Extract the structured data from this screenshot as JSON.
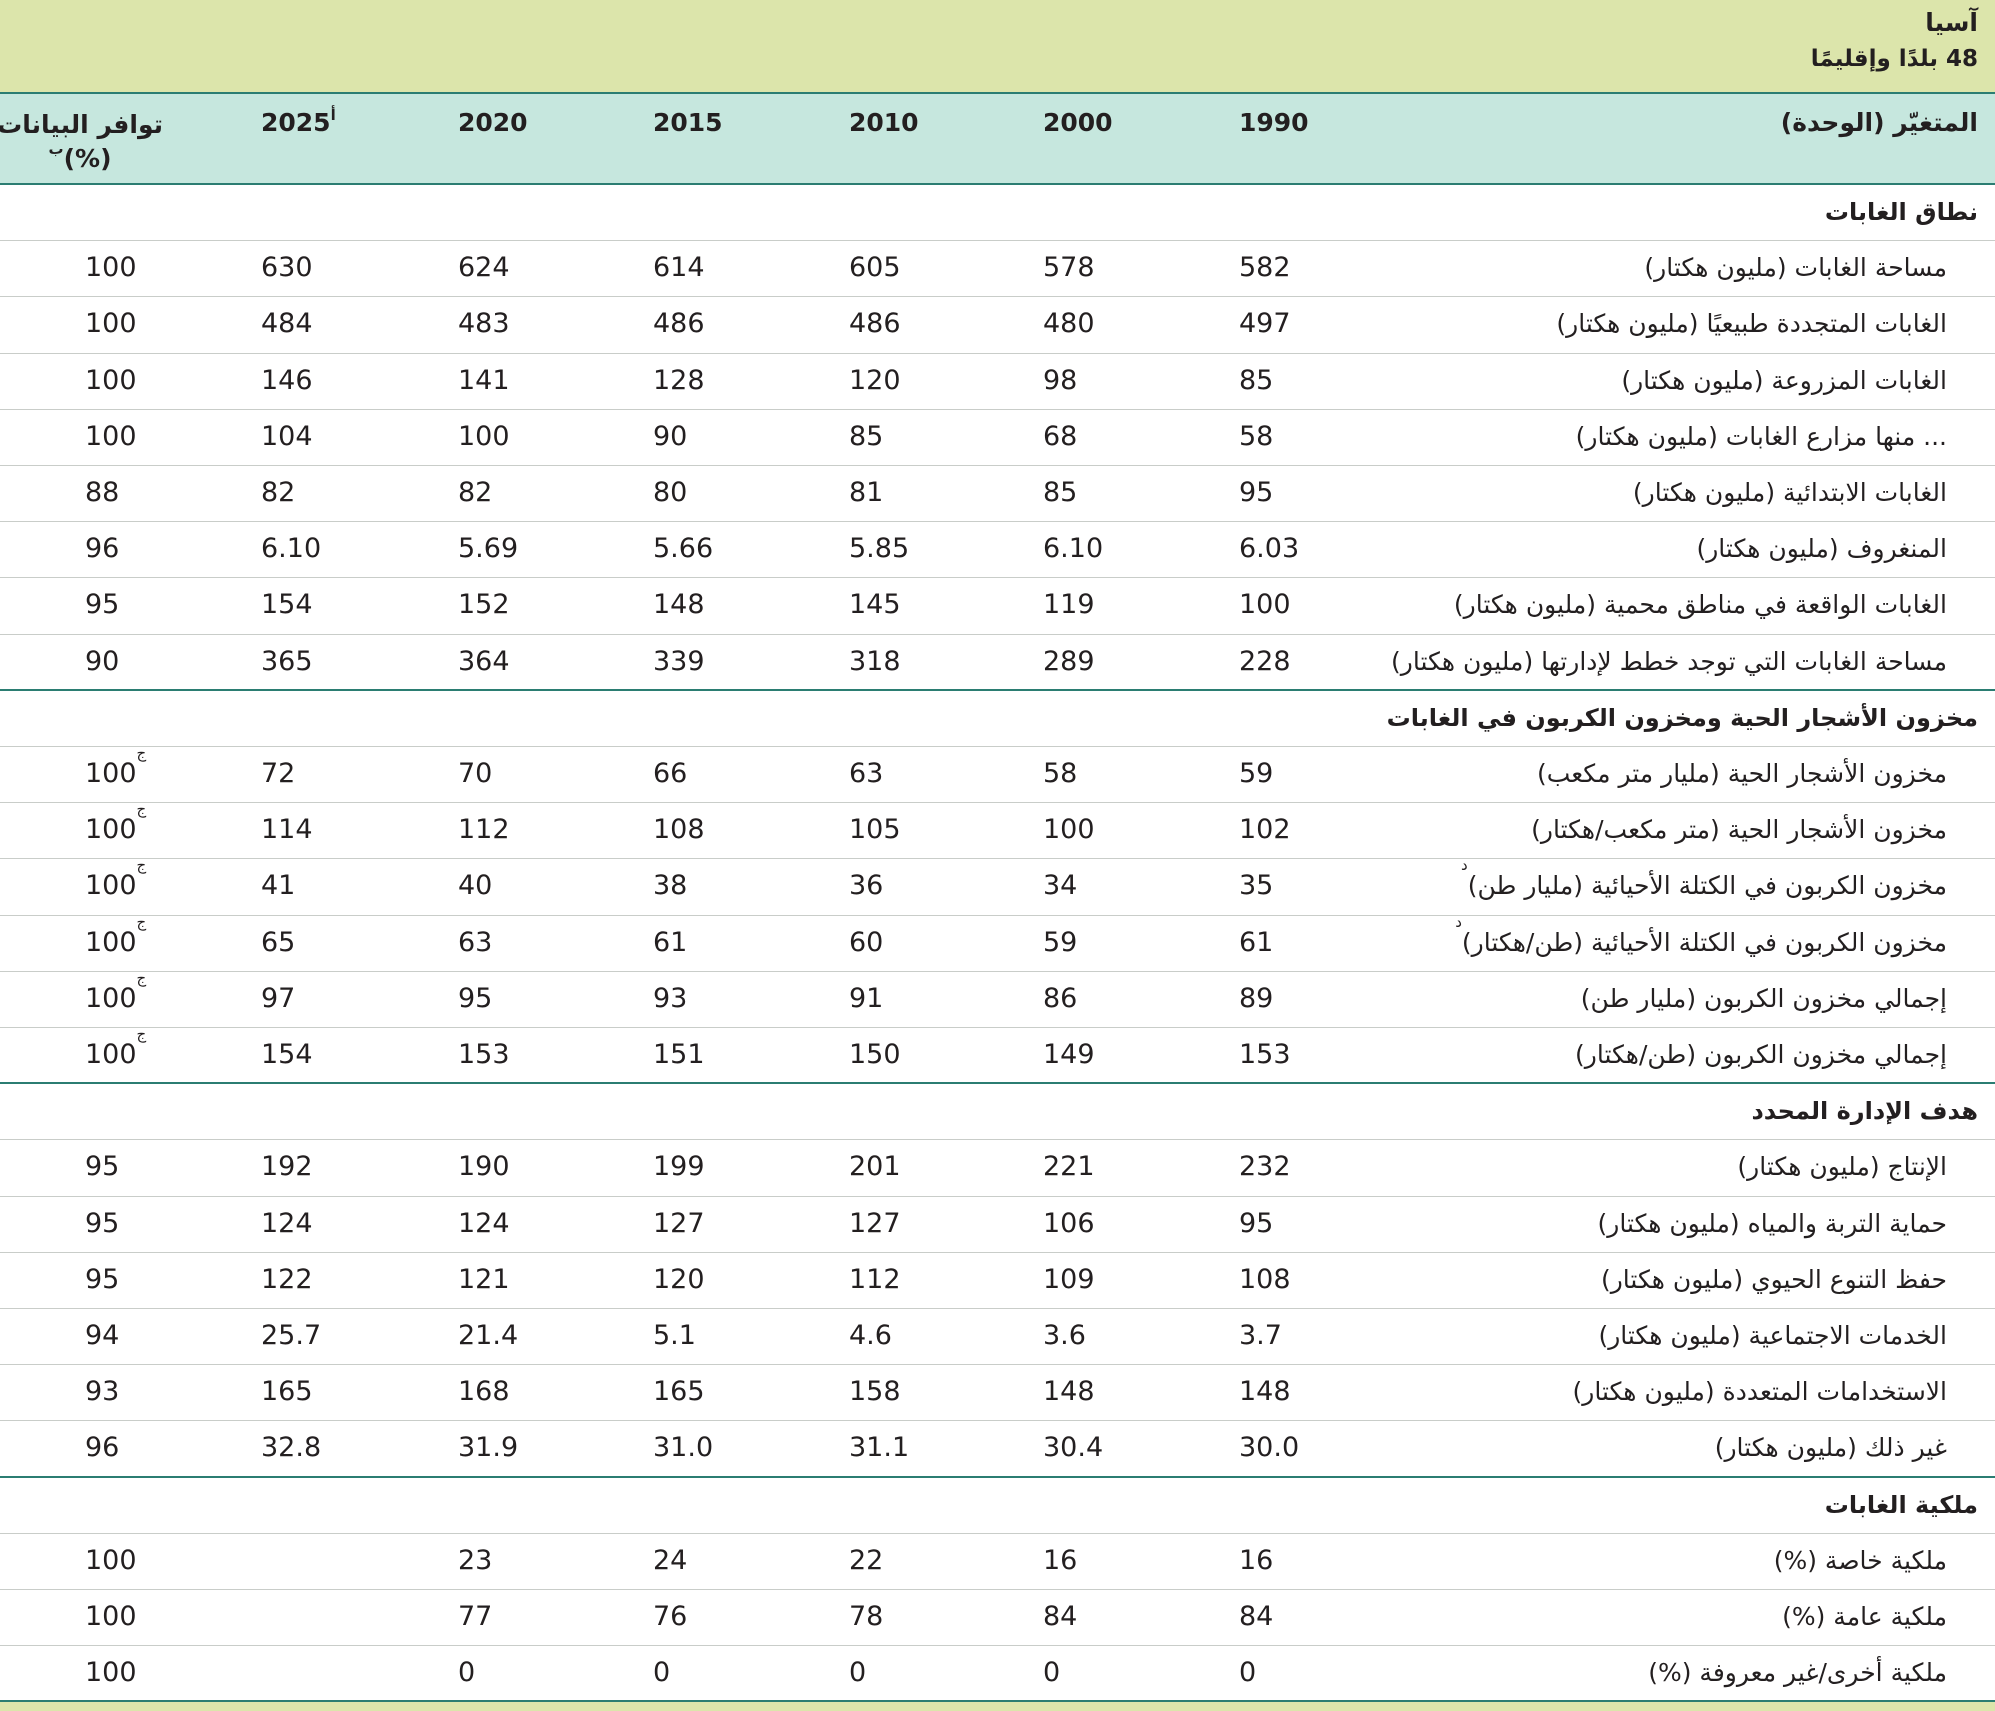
{
  "header": {
    "title": "آسيا",
    "subtitle": "48 بلدًا وإقليمًا"
  },
  "table": {
    "variable_header": "المتغيّر (الوحدة)",
    "years": [
      {
        "text": "1990"
      },
      {
        "text": "2000"
      },
      {
        "text": "2010"
      },
      {
        "text": "2015"
      },
      {
        "text": "2020"
      },
      {
        "text": "2025",
        "note": "أ"
      }
    ],
    "availability_header": {
      "lines": [
        "توافر البيانات",
        "(%)"
      ],
      "note": "ب"
    },
    "sections": [
      {
        "title": "نطاق الغابات",
        "rows": [
          {
            "label": "مساحة الغابات (مليون هكتار)",
            "values": [
              "582",
              "578",
              "605",
              "614",
              "624",
              "630"
            ],
            "availability": "100"
          },
          {
            "label": "الغابات المتجددة طبيعيًا (مليون هكتار)",
            "values": [
              "497",
              "480",
              "486",
              "486",
              "483",
              "484"
            ],
            "availability": "100"
          },
          {
            "label": "الغابات المزروعة (مليون هكتار)",
            "values": [
              "85",
              "98",
              "120",
              "128",
              "141",
              "146"
            ],
            "availability": "100"
          },
          {
            "label": "... منها مزارع الغابات (مليون هكتار)",
            "values": [
              "58",
              "68",
              "85",
              "90",
              "100",
              "104"
            ],
            "availability": "100"
          },
          {
            "label": "الغابات الابتدائية (مليون هكتار)",
            "values": [
              "95",
              "85",
              "81",
              "80",
              "82",
              "82"
            ],
            "availability": "88"
          },
          {
            "label": "المنغروف (مليون هكتار)",
            "values": [
              "6.03",
              "6.10",
              "5.85",
              "5.66",
              "5.69",
              "6.10"
            ],
            "availability": "96"
          },
          {
            "label": "الغابات الواقعة في مناطق محمية (مليون هكتار)",
            "values": [
              "100",
              "119",
              "145",
              "148",
              "152",
              "154"
            ],
            "availability": "95"
          },
          {
            "label": "مساحة الغابات التي توجد خطط لإدارتها (مليون هكتار)",
            "values": [
              "228",
              "289",
              "318",
              "339",
              "364",
              "365"
            ],
            "availability": "90"
          }
        ]
      },
      {
        "title": "مخزون الأشجار الحية ومخزون الكربون في الغابات",
        "rows": [
          {
            "label": "مخزون الأشجار الحية (مليار متر مكعب)",
            "values": [
              "59",
              "58",
              "63",
              "66",
              "70",
              "72"
            ],
            "availability": "100",
            "availability_note": "ج"
          },
          {
            "label": "مخزون الأشجار الحية (متر مكعب/هكتار)",
            "values": [
              "102",
              "100",
              "105",
              "108",
              "112",
              "114"
            ],
            "availability": "100",
            "availability_note": "ج"
          },
          {
            "label": "مخزون الكربون في الكتلة الأحيائية (مليار طن)",
            "note": "د",
            "values": [
              "35",
              "34",
              "36",
              "38",
              "40",
              "41"
            ],
            "availability": "100",
            "availability_note": "ج"
          },
          {
            "label": "مخزون الكربون في الكتلة الأحيائية (طن/هكتار)",
            "note": "د",
            "values": [
              "61",
              "59",
              "60",
              "61",
              "63",
              "65"
            ],
            "availability": "100",
            "availability_note": "ج"
          },
          {
            "label": "إجمالي مخزون الكربون (مليار طن)",
            "values": [
              "89",
              "86",
              "91",
              "93",
              "95",
              "97"
            ],
            "availability": "100",
            "availability_note": "ج"
          },
          {
            "label": "إجمالي مخزون الكربون (طن/هكتار)",
            "values": [
              "153",
              "149",
              "150",
              "151",
              "153",
              "154"
            ],
            "availability": "100",
            "availability_note": "ج"
          }
        ]
      },
      {
        "title": "هدف الإدارة المحدد",
        "rows": [
          {
            "label": "الإنتاج (مليون هكتار)",
            "values": [
              "232",
              "221",
              "201",
              "199",
              "190",
              "192"
            ],
            "availability": "95"
          },
          {
            "label": "حماية التربة والمياه (مليون هكتار)",
            "values": [
              "95",
              "106",
              "127",
              "127",
              "124",
              "124"
            ],
            "availability": "95"
          },
          {
            "label": "حفظ التنوع الحيوي (مليون هكتار)",
            "values": [
              "108",
              "109",
              "112",
              "120",
              "121",
              "122"
            ],
            "availability": "95"
          },
          {
            "label": "الخدمات الاجتماعية (مليون هكتار)",
            "values": [
              "3.7",
              "3.6",
              "4.6",
              "5.1",
              "21.4",
              "25.7"
            ],
            "availability": "94"
          },
          {
            "label": "الاستخدامات المتعددة (مليون هكتار)",
            "values": [
              "148",
              "148",
              "158",
              "165",
              "168",
              "165"
            ],
            "availability": "93"
          },
          {
            "label": "غير ذلك (مليون هكتار)",
            "values": [
              "30.0",
              "30.4",
              "31.1",
              "31.0",
              "31.9",
              "32.8"
            ],
            "availability": "96"
          }
        ]
      },
      {
        "title": "ملكية الغابات",
        "rows": [
          {
            "label": "ملكية خاصة (%)",
            "values": [
              "16",
              "16",
              "22",
              "24",
              "23",
              null
            ],
            "availability": "100"
          },
          {
            "label": "ملكية عامة (%)",
            "values": [
              "84",
              "84",
              "78",
              "76",
              "77",
              null
            ],
            "availability": "100"
          },
          {
            "label": "ملكية أخرى/غير معروفة (%)",
            "values": [
              "0",
              "0",
              "0",
              "0",
              "0",
              null
            ],
            "availability": "100"
          }
        ]
      }
    ]
  }
}
